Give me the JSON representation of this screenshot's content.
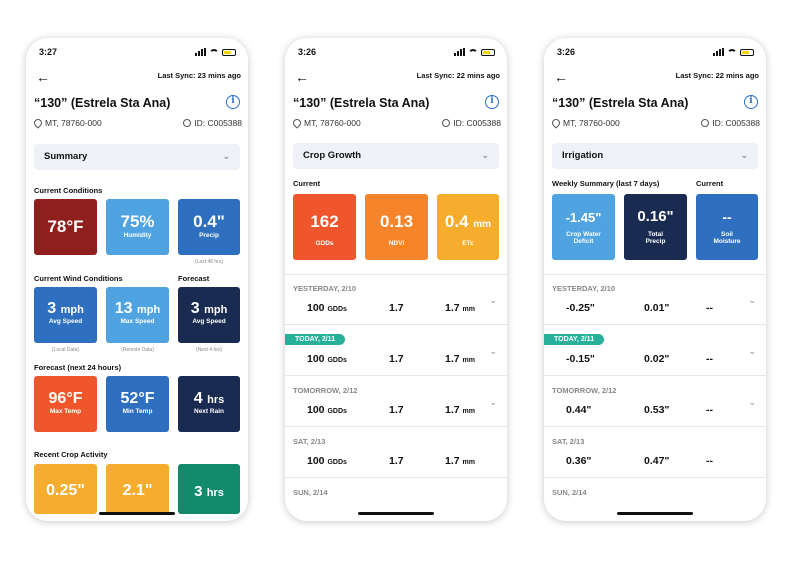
{
  "phones": [
    {
      "time": "3:27",
      "sync": "Last Sync: 23 mins ago",
      "title": "“130” (Estrela Sta Ana)",
      "location": "MT, 78760-000",
      "id": "ID: C005388",
      "selector": "Summary",
      "current_conditions": {
        "label": "Current Conditions",
        "tiles": [
          {
            "value": "78°F",
            "label": "",
            "color": "#8f1f1c"
          },
          {
            "value": "75%",
            "label": "Humidity",
            "color": "#4fa3e0"
          },
          {
            "value": "0.4\"",
            "label": "Precip",
            "color": "#2f6fc0",
            "note": "(Last 48 hrs)"
          }
        ]
      },
      "wind": {
        "label": "Current Wind Conditions",
        "forecast_label": "Forecast",
        "tiles": [
          {
            "value": "3",
            "unit": "mph",
            "label": "Avg Speed",
            "color": "#2f6fc0",
            "note": "(Local Data)"
          },
          {
            "value": "13",
            "unit": "mph",
            "label": "Max Speed",
            "color": "#4fa3e0",
            "note": "(Remote Data)"
          },
          {
            "value": "3",
            "unit": "mph",
            "label": "Avg Speed",
            "color": "#1a2b52",
            "note": "(Next 4 hrs)"
          }
        ]
      },
      "forecast24": {
        "label": "Forecast (next 24 hours)",
        "tiles": [
          {
            "value": "96°F",
            "label": "Max Temp",
            "color": "#f0562c"
          },
          {
            "value": "52°F",
            "label": "Min Temp",
            "color": "#2f6fc0"
          },
          {
            "value": "4",
            "unit": "hrs",
            "label": "Next Rain",
            "color": "#1a2b52"
          }
        ]
      },
      "crop_activity": {
        "label": "Recent Crop Activity",
        "tiles": [
          {
            "value": "0.25\"",
            "color": "#f6ad2e"
          },
          {
            "value": "2.1\"",
            "color": "#f6ad2e"
          },
          {
            "value": "3",
            "unit": "hrs",
            "color": "#138a6c"
          }
        ]
      }
    },
    {
      "time": "3:26",
      "sync": "Last Sync: 22 mins ago",
      "title": "“130” (Estrela Sta Ana)",
      "location": "MT, 78760-000",
      "id": "ID: C005388",
      "selector": "Crop Growth",
      "current_label": "Current",
      "tiles": [
        {
          "value": "162",
          "label": "GDDs",
          "color": "#f0562c"
        },
        {
          "value": "0.13",
          "label": "NDVI",
          "color": "#f5842a"
        },
        {
          "value": "0.4",
          "unit": "mm",
          "label": "ETc",
          "color": "#f6ad2e"
        }
      ],
      "rows": [
        {
          "date": "YESTERDAY, 2/10",
          "gdd": "100",
          "gdd_unit": "GDDs",
          "ndvi": "1.7",
          "etc": "1.7",
          "etc_unit": "mm"
        },
        {
          "date": "TODAY, 2/11",
          "today": true,
          "gdd": "100",
          "gdd_unit": "GDDs",
          "ndvi": "1.7",
          "etc": "1.7",
          "etc_unit": "mm"
        },
        {
          "date": "TOMORROW, 2/12",
          "gdd": "100",
          "gdd_unit": "GDDs",
          "ndvi": "1.7",
          "etc": "1.7",
          "etc_unit": "mm"
        },
        {
          "date": "SAT, 2/13",
          "gdd": "100",
          "gdd_unit": "GDDs",
          "ndvi": "1.7",
          "etc": "1.7",
          "etc_unit": "mm"
        },
        {
          "date": "SUN, 2/14"
        }
      ]
    },
    {
      "time": "3:26",
      "sync": "Last Sync: 22 mins ago",
      "title": "“130” (Estrela Sta Ana)",
      "location": "MT, 78760-000",
      "id": "ID: C005388",
      "selector": "Irrigation",
      "weekly_label": "Weekly Summary (last 7 days)",
      "current_label": "Current",
      "tiles": [
        {
          "value": "-1.45\"",
          "label": "Crop Water Deficit",
          "color": "#4fa3e0"
        },
        {
          "value": "0.16\"",
          "label": "Total Precip",
          "color": "#1a2b52"
        },
        {
          "value": "--",
          "label": "Soil Moisture",
          "color": "#2f6fc0"
        }
      ],
      "rows": [
        {
          "date": "YESTERDAY, 2/10",
          "a": "-0.25\"",
          "b": "0.01\"",
          "c": "--"
        },
        {
          "date": "TODAY, 2/11",
          "today": true,
          "a": "-0.15\"",
          "b": "0.02\"",
          "c": "--"
        },
        {
          "date": "TOMORROW, 2/12",
          "a": "0.44\"",
          "b": "0.53\"",
          "c": "--"
        },
        {
          "date": "SAT, 2/13",
          "a": "0.36\"",
          "b": "0.47\"",
          "c": "--"
        },
        {
          "date": "SUN, 2/14"
        }
      ]
    }
  ]
}
